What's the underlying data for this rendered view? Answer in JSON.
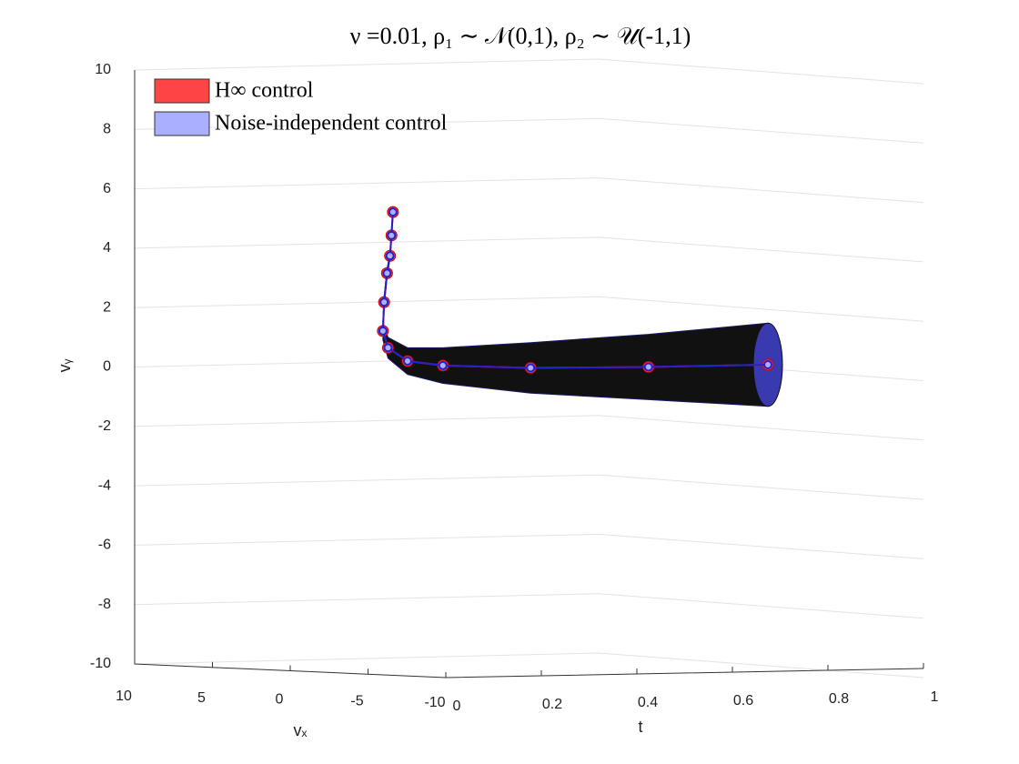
{
  "chart_data": {
    "type": "trajectory3d",
    "title": "ν =0.01, ρ₁ ∼ 𝒩(0,1), ρ₂ ∼ 𝒰(-1,1)",
    "xlabel": "vₓ",
    "ylabel": "t",
    "zlabel": "vᵧ",
    "t": [
      0,
      0.01,
      0.02,
      0.03,
      0.05,
      0.08,
      0.12,
      0.2,
      0.3,
      0.5,
      0.75,
      1
    ],
    "series": [
      {
        "name": "H∞ control",
        "color": "#ff4444",
        "vx": [
          -6.6,
          -6.2,
          -5.8,
          -5.3,
          -4.5,
          -3.5,
          -2.6,
          -1.4,
          -0.6,
          -0.1,
          0,
          0
        ],
        "values": [
          5.6,
          4.8,
          4.1,
          3.5,
          2.5,
          1.5,
          0.9,
          0.4,
          0.2,
          0.05,
          0,
          0
        ]
      },
      {
        "name": "Noise-independent control",
        "color": "#aab0ff",
        "vx": [
          -6.6,
          -6.2,
          -5.8,
          -5.3,
          -4.5,
          -3.5,
          -2.6,
          -1.4,
          -0.6,
          -0.1,
          0,
          0
        ],
        "values": [
          5.6,
          4.8,
          4.1,
          3.5,
          2.5,
          1.5,
          0.9,
          0.4,
          0.2,
          0.05,
          0,
          0
        ],
        "spread": [
          0,
          0.05,
          0.1,
          0.15,
          0.2,
          0.3,
          0.35,
          0.45,
          0.6,
          0.85,
          1.1,
          1.4
        ]
      }
    ],
    "zlim": [
      -10,
      10
    ],
    "zticks": [
      -10,
      -8,
      -6,
      -4,
      -2,
      0,
      2,
      4,
      6,
      8,
      10
    ],
    "xlim": [
      10,
      -10
    ],
    "xticks": [
      10,
      5,
      0,
      -5,
      -10
    ],
    "ylim": [
      0,
      1
    ],
    "yticks": [
      0,
      0.2,
      0.4,
      0.6,
      0.8,
      1
    ],
    "grid": true
  }
}
